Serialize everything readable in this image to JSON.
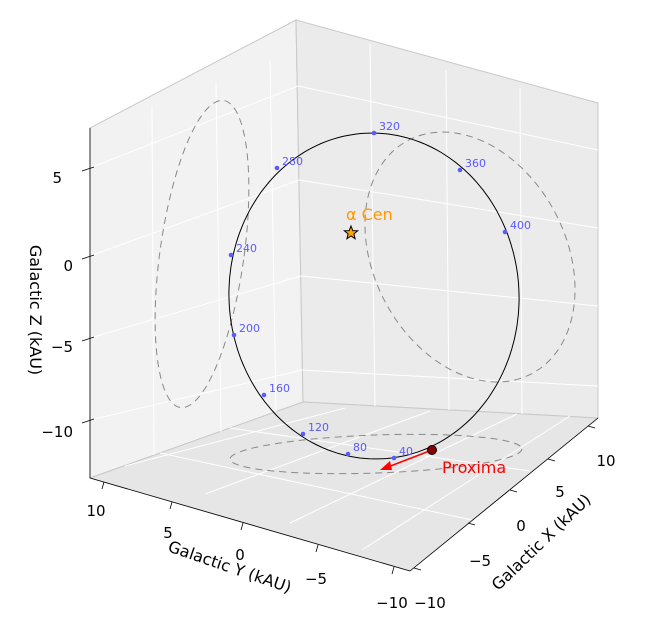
{
  "chart_data": {
    "type": "line3d",
    "axes": {
      "x": {
        "label": "Galactic X (kAU)",
        "ticks": [
          -10,
          -5,
          0,
          5,
          10
        ],
        "tick_labels": [
          "−10",
          "−5",
          "0",
          "5",
          "10"
        ]
      },
      "y": {
        "label": "Galactic Y (kAU)",
        "ticks": [
          10,
          5,
          0,
          -5,
          -10
        ],
        "tick_labels": [
          "10",
          "5",
          "0",
          "−5",
          "−10"
        ]
      },
      "z": {
        "label": "Galactic Z (kAU)",
        "ticks": [
          5,
          0,
          -5,
          -10
        ],
        "tick_labels": [
          "5",
          "0",
          "−5",
          "−10"
        ]
      }
    },
    "grid": true,
    "series": [
      {
        "kind": "orbit",
        "style": "solid",
        "color": "#000000"
      },
      {
        "kind": "projection",
        "plane": "yz",
        "style": "dashed",
        "color": "#808080"
      },
      {
        "kind": "projection",
        "plane": "xz",
        "style": "dashed",
        "color": "#808080"
      },
      {
        "kind": "projection",
        "plane": "xy",
        "style": "dashed",
        "color": "#808080"
      }
    ],
    "time_markers": [
      "40",
      "80",
      "120",
      "160",
      "200",
      "240",
      "280",
      "320",
      "360",
      "400"
    ],
    "time_marker_color": "#5a5aff",
    "points": [
      {
        "name": "alpha-cen",
        "label": "α Cen",
        "marker": "star",
        "color": "#ffa500"
      },
      {
        "name": "proxima",
        "label": "Proxima",
        "marker": "circle",
        "color": "#8b0000",
        "arrow_color": "#ff0000"
      }
    ]
  }
}
